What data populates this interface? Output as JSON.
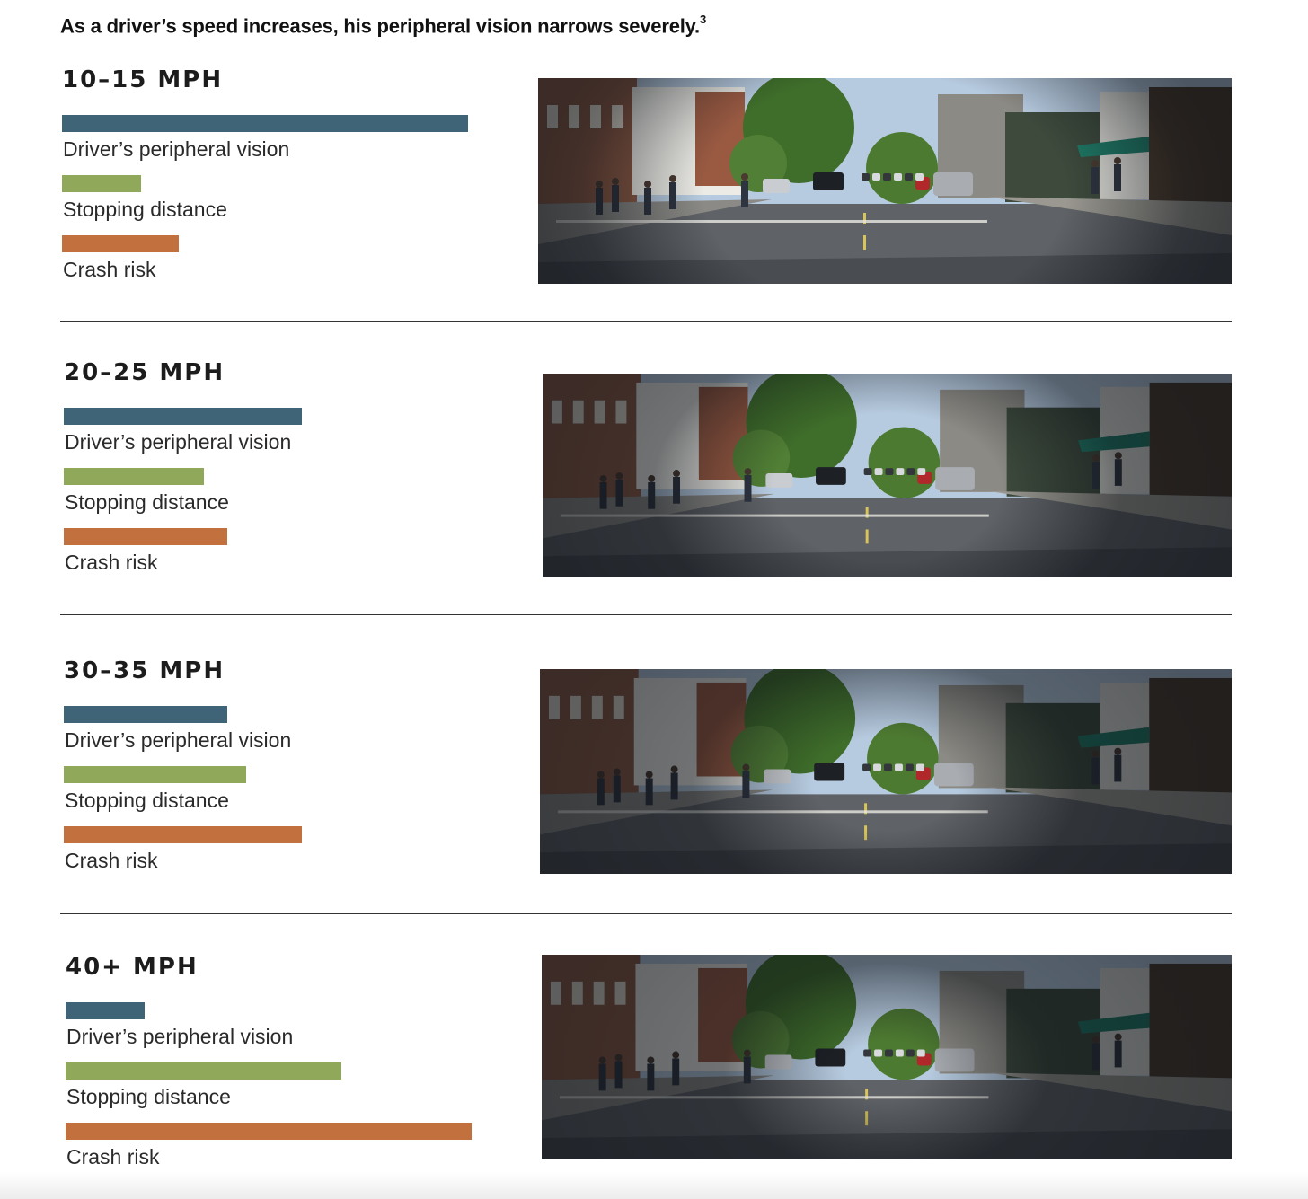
{
  "headline": {
    "text": "As a driver’s speed increases, his peripheral vision narrows severely.",
    "footnote": "3"
  },
  "colors": {
    "peripheral_vision": "#3f6478",
    "stopping_distance": "#8fa85a",
    "crash_risk": "#c2703d"
  },
  "chart_data": {
    "type": "bar",
    "orientation": "horizontal",
    "scale": "relative (no axis shown)",
    "series_order": [
      "Driver’s peripheral vision",
      "Stopping distance",
      "Crash risk"
    ],
    "panels": [
      {
        "speed": "10–15 MPH",
        "peripheral_vision": 0.87,
        "stopping_distance": 0.17,
        "crash_risk": 0.25,
        "vision_clear_fraction": 0.95
      },
      {
        "speed": "20–25 MPH",
        "peripheral_vision": 0.51,
        "stopping_distance": 0.3,
        "crash_risk": 0.35,
        "vision_clear_fraction": 0.6
      },
      {
        "speed": "30–35 MPH",
        "peripheral_vision": 0.35,
        "stopping_distance": 0.39,
        "crash_risk": 0.51,
        "vision_clear_fraction": 0.38
      },
      {
        "speed": "40+ MPH",
        "peripheral_vision": 0.17,
        "stopping_distance": 0.59,
        "crash_risk": 0.87,
        "vision_clear_fraction": 0.22
      }
    ]
  }
}
